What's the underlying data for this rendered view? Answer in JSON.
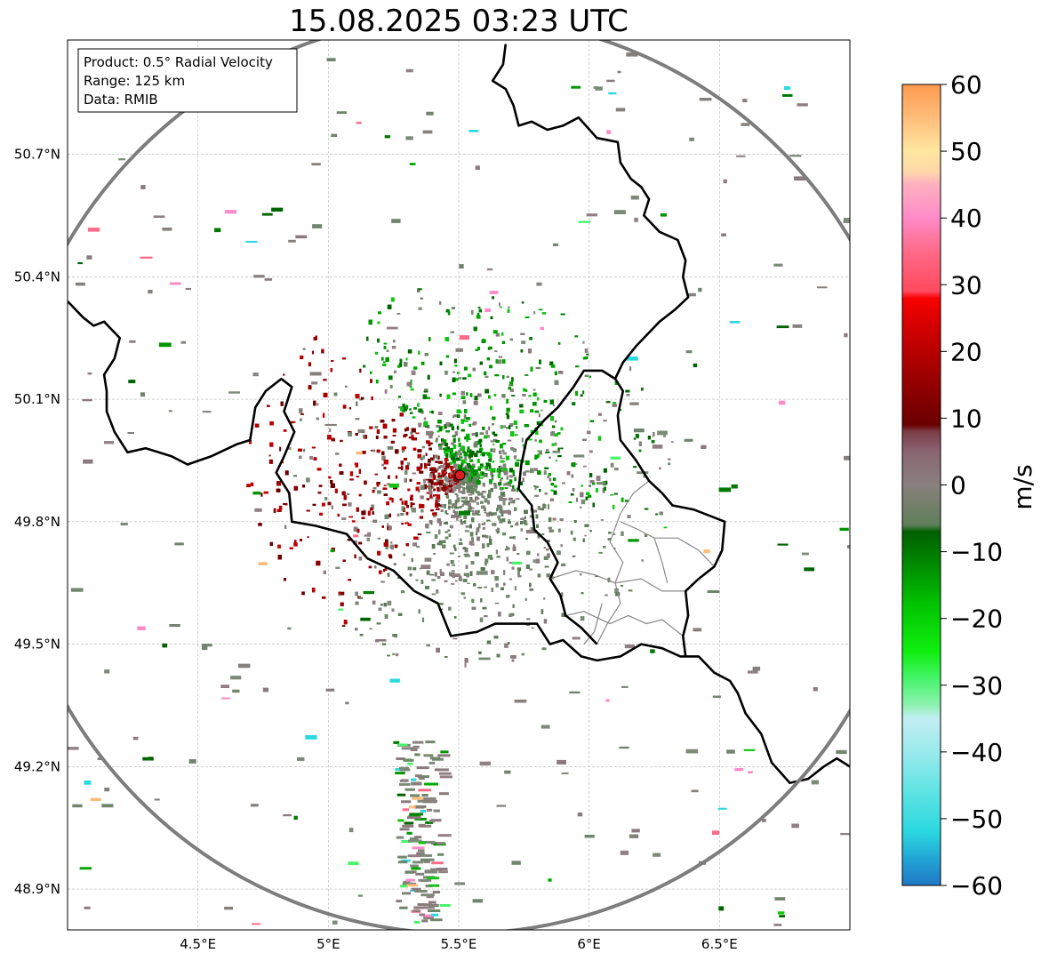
{
  "title": "15.08.2025 03:23 UTC",
  "info_box": {
    "product": "Product: 0.5° Radial Velocity",
    "range": "Range: 125 km",
    "data": "Data: RMIB"
  },
  "map": {
    "lon_range": [
      4.0,
      7.0
    ],
    "lat_range": [
      48.8,
      50.98
    ],
    "radar_site": {
      "lon": 5.505,
      "lat": 49.914,
      "color": "#d62020"
    },
    "range_ring_km": 125,
    "x_ticks": [
      {
        "value": 4.5,
        "label": "4.5°E"
      },
      {
        "value": 5.0,
        "label": "5°E"
      },
      {
        "value": 5.5,
        "label": "5.5°E"
      },
      {
        "value": 6.0,
        "label": "6°E"
      },
      {
        "value": 6.5,
        "label": "6.5°E"
      }
    ],
    "y_ticks": [
      {
        "value": 50.7,
        "label": "50.7°N"
      },
      {
        "value": 50.4,
        "label": "50.4°N"
      },
      {
        "value": 50.1,
        "label": "50.1°N"
      },
      {
        "value": 49.8,
        "label": "49.8°N"
      },
      {
        "value": 49.5,
        "label": "49.5°N"
      },
      {
        "value": 49.2,
        "label": "49.2°N"
      },
      {
        "value": 48.9,
        "label": "48.9°N"
      }
    ],
    "grid": true,
    "borders": [
      [
        [
          5.68,
          50.97
        ],
        [
          5.67,
          50.92
        ],
        [
          5.63,
          50.88
        ],
        [
          5.68,
          50.86
        ],
        [
          5.71,
          50.82
        ],
        [
          5.73,
          50.77
        ],
        [
          5.78,
          50.78
        ],
        [
          5.84,
          50.76
        ],
        [
          5.9,
          50.77
        ],
        [
          5.96,
          50.79
        ],
        [
          6.03,
          50.74
        ],
        [
          6.11,
          50.73
        ],
        [
          6.12,
          50.68
        ],
        [
          6.16,
          50.64
        ],
        [
          6.2,
          50.62
        ],
        [
          6.23,
          50.59
        ],
        [
          6.21,
          50.55
        ],
        [
          6.27,
          50.51
        ],
        [
          6.34,
          50.49
        ],
        [
          6.37,
          50.44
        ],
        [
          6.36,
          50.4
        ],
        [
          6.38,
          50.35
        ],
        [
          6.33,
          50.32
        ],
        [
          6.27,
          50.29
        ],
        [
          6.18,
          50.23
        ],
        [
          6.13,
          50.19
        ],
        [
          6.1,
          50.15
        ]
      ],
      [
        [
          4.0,
          50.34
        ],
        [
          4.06,
          50.3
        ],
        [
          4.1,
          50.28
        ],
        [
          4.14,
          50.29
        ],
        [
          4.2,
          50.25
        ],
        [
          4.18,
          50.2
        ],
        [
          4.14,
          50.16
        ],
        [
          4.15,
          50.12
        ],
        [
          4.15,
          50.07
        ],
        [
          4.18,
          50.02
        ],
        [
          4.23,
          49.97
        ],
        [
          4.3,
          49.98
        ],
        [
          4.4,
          49.96
        ],
        [
          4.46,
          49.94
        ],
        [
          4.55,
          49.96
        ],
        [
          4.65,
          49.99
        ],
        [
          4.7,
          50.0
        ],
        [
          4.72,
          50.08
        ],
        [
          4.76,
          50.12
        ],
        [
          4.82,
          50.15
        ],
        [
          4.86,
          50.13
        ],
        [
          4.83,
          50.07
        ],
        [
          4.87,
          50.02
        ],
        [
          4.83,
          49.96
        ],
        [
          4.8,
          49.92
        ],
        [
          4.85,
          49.87
        ],
        [
          4.86,
          49.8
        ],
        [
          4.95,
          49.79
        ],
        [
          5.07,
          49.77
        ],
        [
          5.15,
          49.71
        ],
        [
          5.25,
          49.68
        ],
        [
          5.33,
          49.63
        ],
        [
          5.42,
          49.6
        ],
        [
          5.47,
          49.52
        ],
        [
          5.57,
          49.53
        ],
        [
          5.64,
          49.55
        ],
        [
          5.72,
          49.55
        ],
        [
          5.8,
          49.55
        ],
        [
          5.85,
          49.5
        ],
        [
          5.9,
          49.51
        ],
        [
          5.97,
          49.47
        ],
        [
          6.03,
          49.46
        ],
        [
          6.12,
          49.47
        ],
        [
          6.2,
          49.5
        ],
        [
          6.28,
          49.49
        ],
        [
          6.35,
          49.47
        ],
        [
          6.42,
          49.47
        ],
        [
          6.48,
          49.43
        ],
        [
          6.54,
          49.41
        ],
        [
          6.57,
          49.38
        ],
        [
          6.6,
          49.33
        ],
        [
          6.66,
          49.28
        ],
        [
          6.7,
          49.21
        ],
        [
          6.77,
          49.16
        ],
        [
          6.84,
          49.17
        ],
        [
          6.9,
          49.2
        ],
        [
          6.95,
          49.22
        ],
        [
          7.0,
          49.2
        ]
      ],
      [
        [
          6.1,
          50.15
        ],
        [
          6.05,
          50.17
        ],
        [
          5.98,
          50.17
        ],
        [
          5.94,
          50.13
        ],
        [
          5.88,
          50.08
        ],
        [
          5.83,
          50.05
        ],
        [
          5.76,
          50.0
        ],
        [
          5.74,
          49.94
        ],
        [
          5.73,
          49.88
        ],
        [
          5.78,
          49.84
        ],
        [
          5.79,
          49.78
        ],
        [
          5.84,
          49.75
        ],
        [
          5.88,
          49.7
        ],
        [
          5.85,
          49.66
        ],
        [
          5.89,
          49.62
        ],
        [
          5.91,
          49.57
        ],
        [
          5.97,
          49.54
        ],
        [
          6.03,
          49.5
        ]
      ],
      [
        [
          6.1,
          50.15
        ],
        [
          6.13,
          50.12
        ],
        [
          6.11,
          50.06
        ],
        [
          6.12,
          50.0
        ],
        [
          6.18,
          49.95
        ],
        [
          6.23,
          49.9
        ],
        [
          6.28,
          49.87
        ],
        [
          6.32,
          49.84
        ],
        [
          6.4,
          49.83
        ],
        [
          6.48,
          49.81
        ],
        [
          6.52,
          49.8
        ],
        [
          6.51,
          49.73
        ],
        [
          6.48,
          49.69
        ],
        [
          6.42,
          49.66
        ],
        [
          6.37,
          49.63
        ],
        [
          6.38,
          49.57
        ],
        [
          6.36,
          49.52
        ],
        [
          6.37,
          49.47
        ]
      ]
    ],
    "admin_borders": [
      [
        [
          6.03,
          49.5
        ],
        [
          6.07,
          49.55
        ],
        [
          6.12,
          49.6
        ],
        [
          6.1,
          49.65
        ],
        [
          6.13,
          49.7
        ],
        [
          6.08,
          49.75
        ],
        [
          6.12,
          49.82
        ],
        [
          6.17,
          49.87
        ],
        [
          6.23,
          49.9
        ]
      ],
      [
        [
          5.85,
          49.66
        ],
        [
          5.95,
          49.68
        ],
        [
          6.02,
          49.67
        ],
        [
          6.1,
          49.65
        ],
        [
          6.2,
          49.66
        ],
        [
          6.28,
          49.63
        ],
        [
          6.37,
          49.63
        ]
      ],
      [
        [
          5.91,
          49.57
        ],
        [
          5.98,
          49.58
        ],
        [
          6.08,
          49.55
        ],
        [
          6.15,
          49.57
        ],
        [
          6.22,
          49.55
        ],
        [
          6.28,
          49.56
        ],
        [
          6.36,
          49.52
        ]
      ],
      [
        [
          6.12,
          49.8
        ],
        [
          6.19,
          49.78
        ],
        [
          6.25,
          49.76
        ],
        [
          6.34,
          49.76
        ],
        [
          6.42,
          49.73
        ],
        [
          6.48,
          49.69
        ]
      ],
      [
        [
          5.98,
          49.5
        ],
        [
          6.02,
          49.53
        ],
        [
          6.05,
          49.6
        ]
      ],
      [
        [
          6.25,
          49.76
        ],
        [
          6.28,
          49.7
        ],
        [
          6.3,
          49.65
        ]
      ]
    ]
  },
  "colorbar": {
    "unit": "m/s",
    "range": [
      -60,
      60
    ],
    "ticks": [
      {
        "value": 60,
        "label": "60"
      },
      {
        "value": 50,
        "label": "50"
      },
      {
        "value": 40,
        "label": "40"
      },
      {
        "value": 30,
        "label": "30"
      },
      {
        "value": 20,
        "label": "20"
      },
      {
        "value": 10,
        "label": "10"
      },
      {
        "value": 0,
        "label": "0"
      },
      {
        "value": -10,
        "label": "−10"
      },
      {
        "value": -20,
        "label": "−20"
      },
      {
        "value": -30,
        "label": "−30"
      },
      {
        "value": -40,
        "label": "−40"
      },
      {
        "value": -50,
        "label": "−50"
      },
      {
        "value": -60,
        "label": "−60"
      }
    ],
    "stops": [
      {
        "value": -60,
        "color": "#1f78c4"
      },
      {
        "value": -56,
        "color": "#22a5d6"
      },
      {
        "value": -52,
        "color": "#2ad8e0"
      },
      {
        "value": -46,
        "color": "#5ee3e3"
      },
      {
        "value": -40,
        "color": "#9ae9ec"
      },
      {
        "value": -35,
        "color": "#c2eef3"
      },
      {
        "value": -33,
        "color": "#8ff2b0"
      },
      {
        "value": -29,
        "color": "#46f56a"
      },
      {
        "value": -25,
        "color": "#10ef10"
      },
      {
        "value": -18,
        "color": "#02c402"
      },
      {
        "value": -12,
        "color": "#008b00"
      },
      {
        "value": -7,
        "color": "#005f00"
      },
      {
        "value": -6,
        "color": "#5f7f5a"
      },
      {
        "value": 0,
        "color": "#8a807e"
      },
      {
        "value": 5,
        "color": "#8a6572"
      },
      {
        "value": 8,
        "color": "#7a3c46"
      },
      {
        "value": 9,
        "color": "#6a0000"
      },
      {
        "value": 16,
        "color": "#9a0000"
      },
      {
        "value": 24,
        "color": "#d60000"
      },
      {
        "value": 28,
        "color": "#fa0000"
      },
      {
        "value": 29,
        "color": "#ff4a5e"
      },
      {
        "value": 35,
        "color": "#ff6a88"
      },
      {
        "value": 40,
        "color": "#ff8ac8"
      },
      {
        "value": 45,
        "color": "#ffb0c0"
      },
      {
        "value": 47,
        "color": "#ffd8a8"
      },
      {
        "value": 50,
        "color": "#ffe7a0"
      },
      {
        "value": 55,
        "color": "#ffbd7a"
      },
      {
        "value": 60,
        "color": "#ff9a50"
      }
    ]
  },
  "colors": {
    "approaching_green": "#009500",
    "receding_red": "#8c0000",
    "near_zero_gray": "#86807c",
    "ring": "#7d7d7d",
    "border": "#000000",
    "admin_border": "#888888"
  }
}
